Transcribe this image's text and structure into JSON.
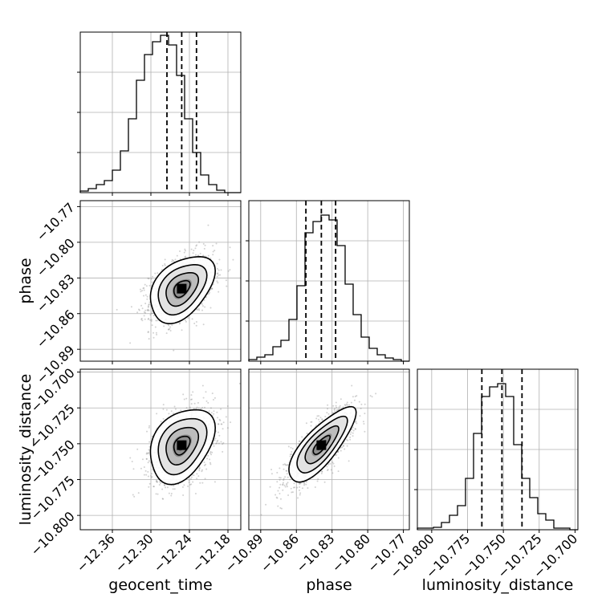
{
  "chart_data": {
    "type": "corner",
    "parameters": [
      {
        "key": "geocent_time",
        "label": "geocent_time",
        "range": [
          -12.41,
          -12.16
        ],
        "ticks": [
          "−12.36",
          "−12.30",
          "−12.24",
          "−12.18"
        ],
        "tick_values": [
          -12.36,
          -12.3,
          -12.24,
          -12.18
        ],
        "quantiles": [
          -12.275,
          -12.252,
          -12.229
        ]
      },
      {
        "key": "phase",
        "label": "phase",
        "range": [
          -10.9,
          -10.765
        ],
        "ticks": [
          "−10.89",
          "−10.86",
          "−10.83",
          "−10.80",
          "−10.77"
        ],
        "tick_values": [
          -10.89,
          -10.86,
          -10.83,
          -10.8,
          -10.77
        ],
        "quantiles": [
          -10.852,
          -10.839,
          -10.827
        ]
      },
      {
        "key": "luminosity_distance",
        "label": "luminosity_distance",
        "range": [
          -10.81,
          -10.698
        ],
        "ticks": [
          "−10.800",
          "−10.775",
          "−10.750",
          "−10.725",
          "−10.700"
        ],
        "tick_values": [
          -10.8,
          -10.775,
          -10.75,
          -10.725,
          -10.7
        ],
        "quantiles": [
          -10.765,
          -10.751,
          -10.737
        ]
      }
    ],
    "histograms": [
      {
        "param": "geocent_time",
        "counts": [
          2,
          5,
          10,
          15,
          28,
          52,
          92,
          140,
          172,
          188,
          196,
          184,
          146,
          92,
          50,
          22,
          10,
          3,
          0,
          0
        ]
      },
      {
        "param": "phase",
        "counts": [
          2,
          5,
          8,
          18,
          26,
          52,
          94,
          160,
          174,
          182,
          176,
          144,
          96,
          58,
          30,
          16,
          8,
          4,
          2,
          0
        ]
      },
      {
        "param": "luminosity_distance",
        "counts": [
          2,
          2,
          3,
          9,
          18,
          30,
          64,
          120,
          166,
          178,
          182,
          166,
          106,
          64,
          40,
          20,
          12,
          2,
          2,
          0
        ]
      }
    ],
    "joint": [
      {
        "x": "geocent_time",
        "y": "phase",
        "mean": [
          -12.252,
          -10.839
        ],
        "std": [
          0.025,
          0.014
        ],
        "corr": 0.42
      },
      {
        "x": "geocent_time",
        "y": "luminosity_distance",
        "mean": [
          -12.252,
          -10.751
        ],
        "std": [
          0.025,
          0.013
        ],
        "corr": 0.35
      },
      {
        "x": "phase",
        "y": "luminosity_distance",
        "mean": [
          -10.839,
          -10.751
        ],
        "std": [
          0.014,
          0.013
        ],
        "corr": 0.78
      }
    ],
    "levels_sigma": [
      0.5,
      1.0,
      1.5,
      2.0
    ],
    "grid": true,
    "colors": {
      "line": "#000000",
      "grid": "#b0b0b0",
      "points": "#7f7f7f",
      "bg": "#ffffff"
    }
  }
}
